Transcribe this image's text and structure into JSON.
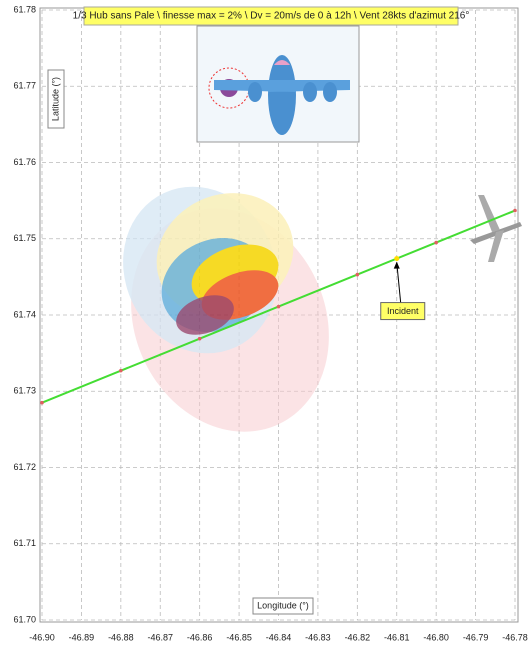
{
  "chart_data": {
    "type": "line",
    "title": "1/3 Hub sans Pale \\ finesse max = 2% \\ Dv = 20m/s de 0 à 12h \\ Vent 28kts d'azimut 216°",
    "xlabel": "Longitude (°)",
    "ylabel": "Latitude (°)",
    "xlim": [
      -46.9,
      -46.78
    ],
    "xticks": [
      {
        "value": -46.9,
        "label": "-46.90"
      },
      -46.89,
      -46.88,
      -46.87,
      -46.86,
      -46.85,
      -46.84,
      -46.83,
      -46.82,
      -46.81,
      {
        "value": -46.8,
        "label": "-46.80"
      },
      -46.79,
      -46.78
    ],
    "ylim": [
      61.7,
      61.78
    ],
    "yticks": [
      {
        "value": 61.7,
        "label": "61.70"
      },
      61.71,
      61.72,
      61.73,
      61.74,
      61.75,
      61.76,
      61.77,
      61.78
    ],
    "grid": true,
    "series": [
      {
        "color": "#44dd33",
        "x": [
          -46.9,
          -46.88,
          -46.86,
          -46.84,
          -46.82,
          -46.8,
          -46.78
        ],
        "y": [
          61.7285,
          61.7327,
          61.7369,
          61.7411,
          61.7453,
          61.7495,
          61.7537
        ]
      }
    ],
    "annotation": {
      "text": "Incident",
      "x": -46.81,
      "y": 61.7474
    }
  }
}
